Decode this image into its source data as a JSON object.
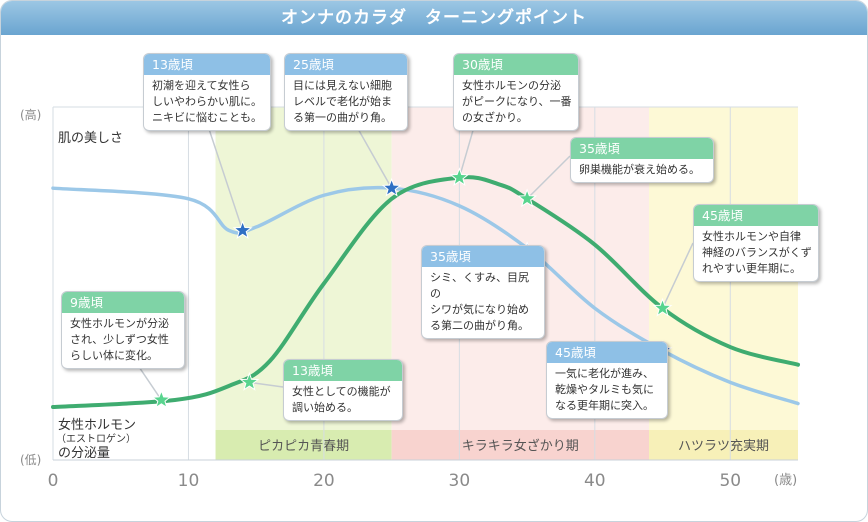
{
  "title": "オンナのカラダ　ターニングポイント",
  "chart_data": {
    "type": "line",
    "x_ticks": [
      0,
      10,
      20,
      30,
      40,
      50
    ],
    "x_unit": "(歳)",
    "xlim": [
      0,
      55
    ],
    "y_top_label": "(高)",
    "y_bottom_label": "(低)",
    "series": [
      {
        "name": "肌の美しさ",
        "color": "#9cc8e8",
        "x": [
          0,
          10,
          13,
          15,
          20,
          25,
          30,
          35,
          40,
          45,
          50,
          55
        ],
        "y": [
          0.77,
          0.74,
          0.65,
          0.66,
          0.75,
          0.77,
          0.72,
          0.6,
          0.43,
          0.31,
          0.22,
          0.16
        ]
      },
      {
        "name": "女性ホルモン(エストロゲン)の分泌量",
        "color": "#3fac70",
        "x": [
          0,
          9,
          13,
          16,
          20,
          25,
          30,
          33,
          35,
          40,
          45,
          50,
          55
        ],
        "y": [
          0.15,
          0.17,
          0.21,
          0.28,
          0.5,
          0.74,
          0.8,
          0.78,
          0.74,
          0.61,
          0.43,
          0.32,
          0.27
        ]
      }
    ],
    "bands": [
      {
        "label": "ピカピカ青春期",
        "from": 12,
        "to": 25,
        "color": "#eef6d6",
        "label_bg": "#d8ecb0"
      },
      {
        "label": "キラキラ女ざかり期",
        "from": 25,
        "to": 44,
        "color": "#fcecea",
        "label_bg": "#f8d3cf"
      },
      {
        "label": "ハツラツ充実期",
        "from": 44,
        "to": 55,
        "color": "#fdf9d6",
        "label_bg": "#f7f0b8"
      }
    ],
    "markers": [
      {
        "series": 0,
        "x": 14,
        "y": 0.65
      },
      {
        "series": 0,
        "x": 25,
        "y": 0.77
      },
      {
        "series": 0,
        "x": 35,
        "y": 0.59
      },
      {
        "series": 0,
        "x": 45,
        "y": 0.31
      },
      {
        "series": 1,
        "x": 8,
        "y": 0.17
      },
      {
        "series": 1,
        "x": 14.5,
        "y": 0.22
      },
      {
        "series": 1,
        "x": 30,
        "y": 0.8
      },
      {
        "series": 1,
        "x": 35,
        "y": 0.74
      },
      {
        "series": 1,
        "x": 45,
        "y": 0.43
      }
    ]
  },
  "callouts": [
    {
      "age": "13歳頃",
      "text": "初潮を迎えて女性ら\nしいやわらかい肌に。\nニキビに悩むことも。",
      "type": "blue"
    },
    {
      "age": "25歳頃",
      "text": "目には見えない細胞\nレベルで老化が始ま\nる第一の曲がり角。",
      "type": "blue"
    },
    {
      "age": "30歳頃",
      "text": "女性ホルモンの分泌\nがピークになり、一番\nの女ざかり。",
      "type": "green"
    },
    {
      "age": "35歳頃",
      "text": "卵巣機能が衰え始める。",
      "type": "green"
    },
    {
      "age": "45歳頃",
      "text": "女性ホルモンや自律\n神経のバランスがくず\nれやすい更年期に。",
      "type": "green"
    },
    {
      "age": "35歳頃",
      "text": "シミ、くすみ、目尻の\nシワが気になり始め\nる第二の曲がり角。",
      "type": "blue"
    },
    {
      "age": "9歳頃",
      "text": "女性ホルモンが分泌\nされ、少しずつ女性\nらしい体に変化。",
      "type": "green"
    },
    {
      "age": "13歳頃",
      "text": "女性としての機能が\n調い始める。",
      "type": "green"
    },
    {
      "age": "45歳頃",
      "text": "一気に老化が進み、\n乾燥やタルミも気に\nなる更年期に突入。",
      "type": "blue"
    }
  ],
  "series_labels": {
    "skin": "肌の美しさ",
    "hormone_line1": "女性ホルモン",
    "hormone_line2": "（エストロゲン）",
    "hormone_line3": "の分泌量"
  }
}
